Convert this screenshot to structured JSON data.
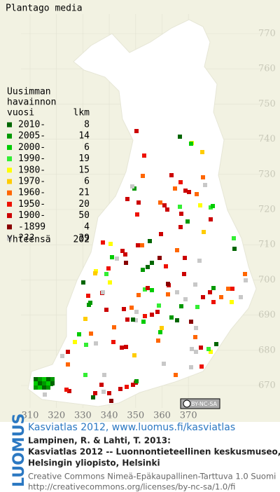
{
  "title": "Plantago media",
  "legend": {
    "heading": [
      "Uusimman",
      "havainnon"
    ],
    "year_header": "vuosi",
    "count_header": "lkm",
    "rows": [
      {
        "label": "2010-",
        "count": 8,
        "color": "#006600"
      },
      {
        "label": "2005-",
        "count": 14,
        "color": "#009900"
      },
      {
        "label": "2000-",
        "count": 6,
        "color": "#00cc00"
      },
      {
        "label": "1990-",
        "count": 19,
        "color": "#33ee33"
      },
      {
        "label": "1980-",
        "count": 15,
        "color": "#ffff00"
      },
      {
        "label": "1970-",
        "count": 6,
        "color": "#ffcc00"
      },
      {
        "label": "1960-",
        "count": 21,
        "color": "#ff6600"
      },
      {
        "label": "1950-",
        "count": 20,
        "color": "#ee1100"
      },
      {
        "label": "1900-",
        "count": 50,
        "color": "#cc0000"
      },
      {
        "label": "-1899",
        "count": 4,
        "color": "#880000"
      },
      {
        "label": "???",
        "count": 39,
        "color": "#c8c8c8"
      }
    ],
    "total_label": "Yhteensä",
    "total": 202
  },
  "grid": {
    "x_labels": [
      310,
      320,
      330,
      340,
      350,
      360,
      370
    ],
    "y_labels": [
      670,
      680,
      690,
      700,
      710,
      720,
      730,
      740,
      750,
      760,
      770
    ]
  },
  "license_badge": "BY-NC-SA",
  "footer": {
    "brand": "LUOMUS",
    "link": "Kasviatlas 2012, www.luomus.fi/kasviatlas",
    "citation": [
      "Lampinen, R. & Lahti, T. 2013:",
      "Kasviatlas 2012 -- Luonnontieteellinen keskusmuseo,",
      "Helsingin yliopisto, Helsinki"
    ],
    "license": [
      "Creative Commons Nimeä-Epäkaupallinen-Tarttuva 1.0 Suomi",
      "http://creativecommons.org/licenses/by-nc-sa/1.0/fi"
    ]
  }
}
